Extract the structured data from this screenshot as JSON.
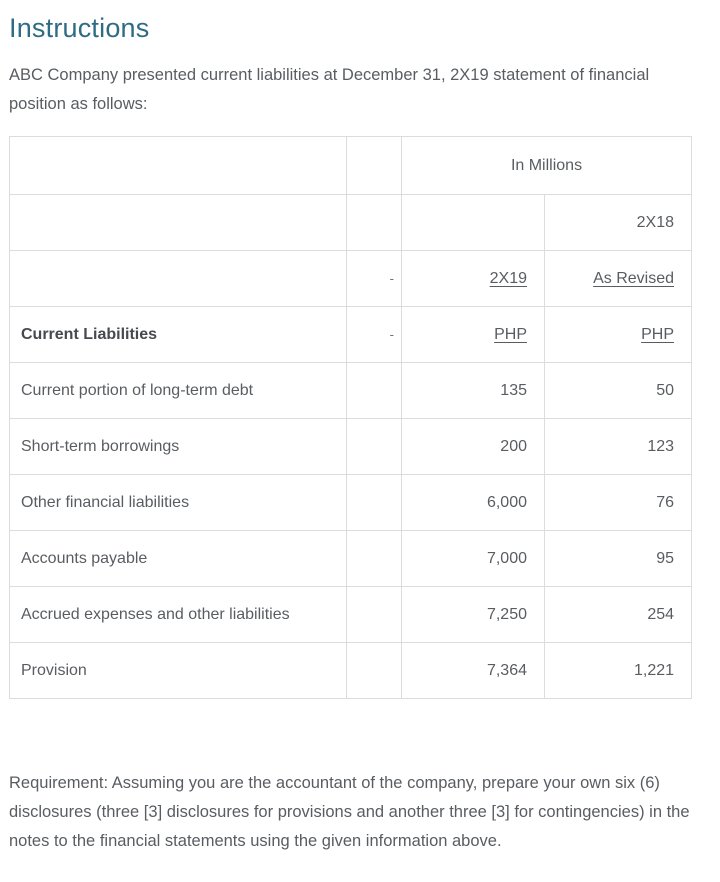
{
  "page": {
    "title": "Instructions",
    "intro": "ABC Company presented current liabilities at December 31, 2X19 statement of financial position as follows:",
    "requirement": "Requirement: Assuming you are the accountant of the company, prepare your own six (6) disclosures (three [3] disclosures for provisions and another three [3] for contingencies) in the notes to the financial statements using the given information above."
  },
  "colors": {
    "heading": "#2e6b85",
    "body_text": "#595d61",
    "table_border": "#dadcde"
  },
  "table": {
    "header": {
      "in_millions": "In Millions",
      "year_2x18": "2X18",
      "year_2x19": "2X19",
      "as_revised": "As Revised",
      "dash": "-",
      "section_title": "Current Liabilities",
      "currency_2x19": "PHP",
      "currency_2x18": "PHP"
    },
    "rows": [
      {
        "label": "Current portion of long-term debt",
        "y2x19": "135",
        "y2x18": "50"
      },
      {
        "label": "Short-term borrowings",
        "y2x19": "200",
        "y2x18": "123"
      },
      {
        "label": "Other financial liabilities",
        "y2x19": "6,000",
        "y2x18": "76"
      },
      {
        "label": "Accounts payable",
        "y2x19": "7,000",
        "y2x18": "95"
      },
      {
        "label": "Accrued expenses and other liabilities",
        "y2x19": "7,250",
        "y2x18": "254"
      },
      {
        "label": "Provision",
        "y2x19": "7,364",
        "y2x18": "1,221"
      }
    ]
  }
}
